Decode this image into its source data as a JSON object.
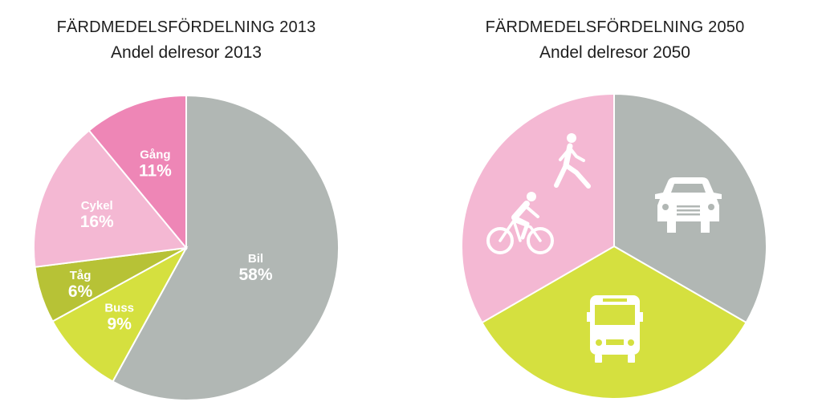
{
  "chart_data": [
    {
      "type": "pie",
      "title": "FÄRDMEDELSFÖRDELNING 2013",
      "subtitle": "Andel delresor 2013",
      "slices": [
        {
          "label": "Bil",
          "value": 58,
          "value_label": "58%",
          "color": "#b1b7b4"
        },
        {
          "label": "Buss",
          "value": 9,
          "value_label": "9%",
          "color": "#d5e03f"
        },
        {
          "label": "Tåg",
          "value": 6,
          "value_label": "6%",
          "color": "#b7c236"
        },
        {
          "label": "Cykel",
          "value": 16,
          "value_label": "16%",
          "color": "#f4b8d3"
        },
        {
          "label": "Gång",
          "value": 11,
          "value_label": "11%",
          "color": "#ee86b6"
        }
      ]
    },
    {
      "type": "pie",
      "title": "FÄRDMEDELSFÖRDELNING 2050",
      "subtitle": "Andel delresor 2050",
      "slices": [
        {
          "icon": "car-icon",
          "value": 33.33,
          "color": "#b1b7b4"
        },
        {
          "icon": "bus-icon",
          "value": 33.33,
          "color": "#d5e03f"
        },
        {
          "icon": "walk-bike-icon",
          "value": 33.34,
          "color": "#f4b8d3"
        }
      ]
    }
  ]
}
